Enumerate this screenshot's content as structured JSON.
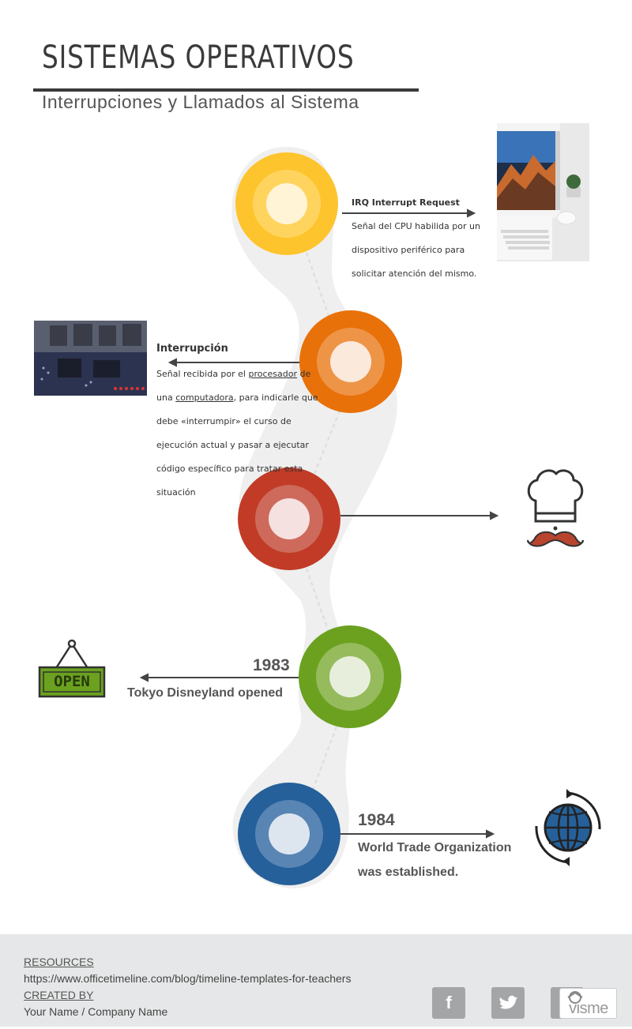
{
  "header": {
    "title": "SISTEMAS OPERATIVOS",
    "subtitle": "Interrupciones y Llamados al Sistema"
  },
  "timeline": {
    "event1": {
      "title": "IRQ Interrupt Request",
      "lines": [
        "Señal del CPU habilida por un",
        "dispositivo periférico para",
        "solicitar atención del mismo."
      ],
      "image": "computer-desk-photo"
    },
    "event2": {
      "title": "Interrupción",
      "line1_pre": "Señal recibida por el ",
      "line1_link": "procesador",
      "line1_post": " de",
      "line2_pre": "una ",
      "line2_link": "computadora",
      "line2_post": ", para indicarle que",
      "lines": [
        "debe «interrumpir» el curso de",
        "ejecución actual y pasar a ejecutar",
        "código específico para tratar esta",
        "situación"
      ],
      "image": "circuit-board-photo"
    },
    "event3": {
      "icon": "chef-hat-mustache-icon"
    },
    "event4": {
      "year": "1983",
      "text": "Tokyo Disneyland opened",
      "icon": "open-sign-icon",
      "sign_text": "OPEN"
    },
    "event5": {
      "year": "1984",
      "text_line1": "World Trade Organization",
      "text_line2": "was established.",
      "icon": "globe-arrows-icon"
    }
  },
  "colors": {
    "yellow": "#fec42d",
    "orange": "#e8710a",
    "red": "#c13b27",
    "green": "#6ba11f",
    "blue": "#26609a",
    "path": "#efefef",
    "footer": "#e6e7e8"
  },
  "footer": {
    "resources_label": "RESOURCES",
    "resources_url": "https://www.officetimeline.com/blog/timeline-templates-for-teachers",
    "created_label": "CREATED BY",
    "created_value": "Your Name / Company Name",
    "social": [
      "facebook-icon",
      "twitter-icon",
      "linkedin-icon"
    ],
    "brand": "visme"
  }
}
